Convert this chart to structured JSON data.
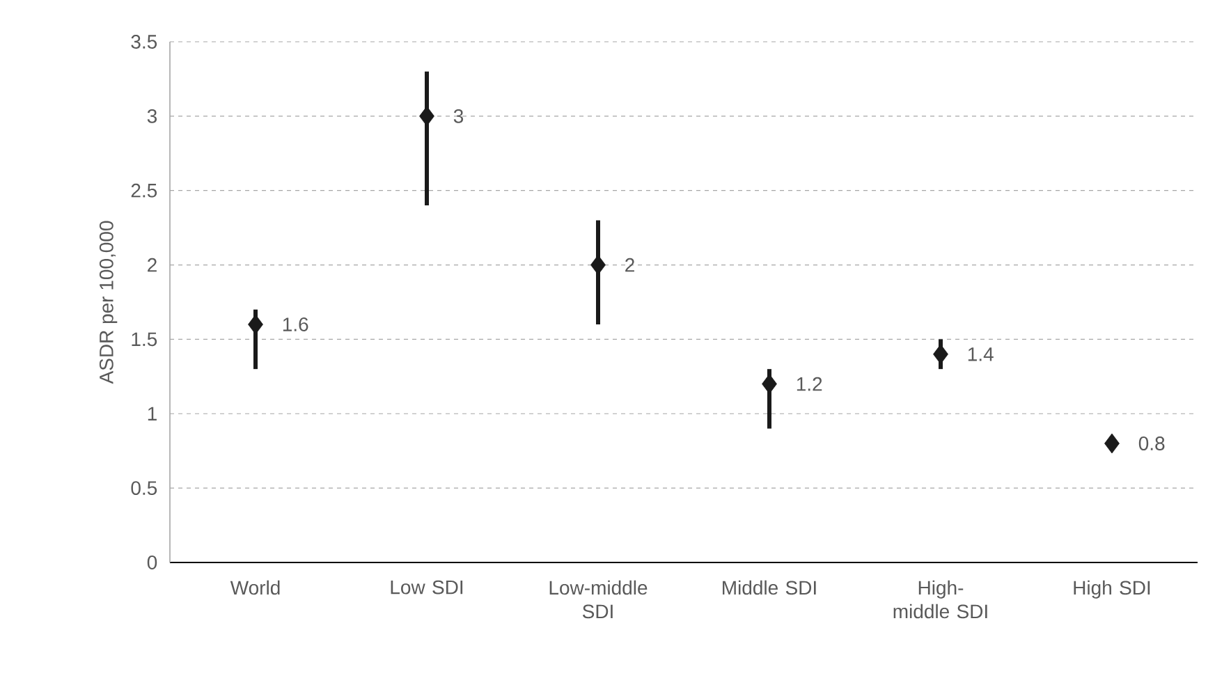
{
  "chart_data": {
    "type": "scatter",
    "ylabel": "ASDR per 100,000",
    "categories": [
      "World",
      "Low SDI",
      "Low-middle SDI",
      "Middle SDI",
      "High-middle SDI",
      "High SDI"
    ],
    "values": [
      1.6,
      3,
      2,
      1.2,
      1.4,
      0.8
    ],
    "errors": [
      [
        1.3,
        1.7
      ],
      [
        2.4,
        3.3
      ],
      [
        1.6,
        2.3
      ],
      [
        0.9,
        1.3
      ],
      [
        1.3,
        1.5
      ],
      null
    ],
    "color": "#1a1a1a",
    "marker": "diamond",
    "data_labels": true,
    "grid": "y",
    "ylim": [
      0,
      3.5
    ],
    "yticks": [
      0,
      0.5,
      1,
      1.5,
      2,
      2.5,
      3,
      3.5
    ]
  }
}
